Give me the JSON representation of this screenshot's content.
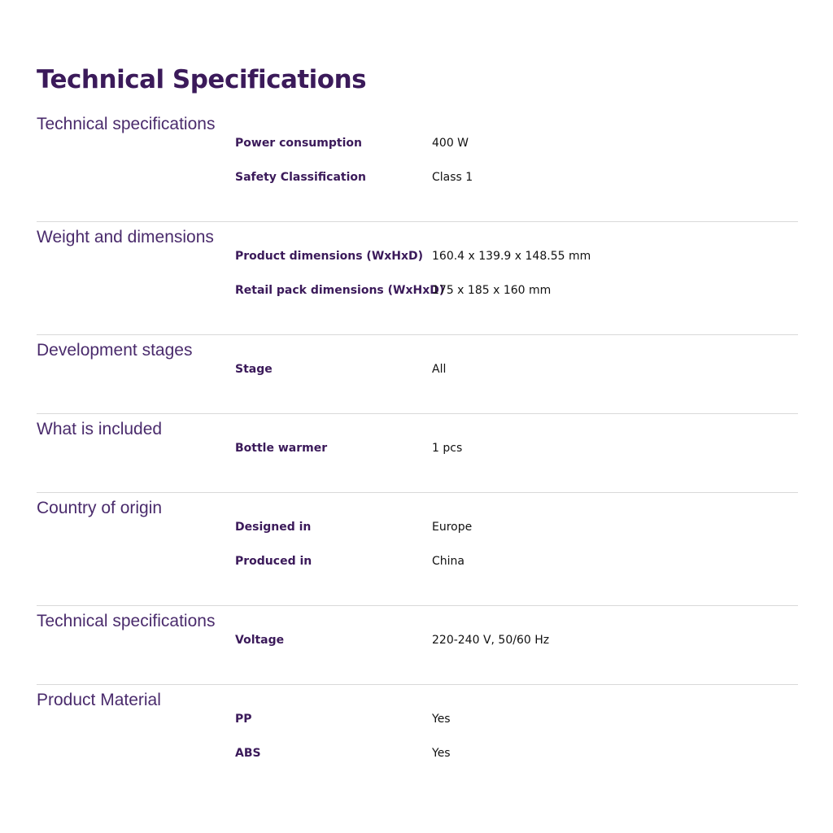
{
  "title": "Technical Specifications",
  "sections": [
    {
      "label": "Technical specifications",
      "rows": [
        {
          "key": "Power consumption",
          "value": "400 W"
        },
        {
          "key": "Safety Classification",
          "value": "Class 1"
        }
      ]
    },
    {
      "label": "Weight and dimensions",
      "rows": [
        {
          "key": "Product dimensions (WxHxD)",
          "value": "160.4 x 139.9 x 148.55 mm"
        },
        {
          "key": "Retail pack dimensions (WxHxD)",
          "value": "175 x 185 x 160 mm"
        }
      ]
    },
    {
      "label": "Development stages",
      "rows": [
        {
          "key": "Stage",
          "value": "All"
        }
      ]
    },
    {
      "label": "What is included",
      "rows": [
        {
          "key": "Bottle warmer",
          "value": "1 pcs"
        }
      ]
    },
    {
      "label": "Country of origin",
      "rows": [
        {
          "key": "Designed in",
          "value": "Europe"
        },
        {
          "key": "Produced in",
          "value": "China"
        }
      ]
    },
    {
      "label": "Technical specifications",
      "rows": [
        {
          "key": "Voltage",
          "value": "220-240 V, 50/60 Hz"
        }
      ]
    },
    {
      "label": "Product Material",
      "rows": [
        {
          "key": "PP",
          "value": "Yes"
        },
        {
          "key": "ABS",
          "value": "Yes"
        }
      ]
    }
  ],
  "colors": {
    "heading": "#3b1a5a",
    "label": "#4a2b6c",
    "divider": "#d9d9d9"
  }
}
